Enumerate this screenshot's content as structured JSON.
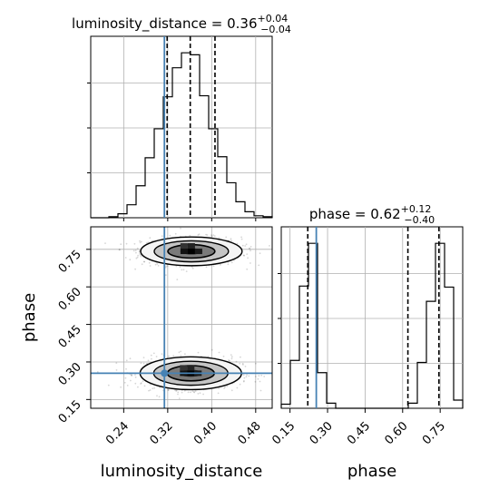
{
  "chart_data": {
    "type": "corner",
    "parameters": [
      "luminosity_distance",
      "phase"
    ],
    "truth": {
      "luminosity_distance": 0.314,
      "phase": 0.255
    },
    "truth_color": "#4682b4",
    "panels": [
      {
        "id": "hist-luminosity-distance",
        "type": "histogram",
        "parameter": "luminosity_distance",
        "title_prefix": "luminosity_distance = ",
        "value": "0.36",
        "err_plus": "+0.04",
        "err_minus": "−0.04",
        "xlim": [
          0.18,
          0.51
        ],
        "bin_edges": [
          0.18,
          0.1965,
          0.213,
          0.2295,
          0.246,
          0.2625,
          0.279,
          0.2955,
          0.312,
          0.3285,
          0.345,
          0.3615,
          0.378,
          0.3945,
          0.411,
          0.4275,
          0.444,
          0.4605,
          0.477,
          0.4935,
          0.51
        ],
        "counts": [
          0,
          0,
          1,
          4,
          13,
          32,
          60,
          89,
          121,
          150,
          165,
          163,
          122,
          89,
          61,
          35,
          16,
          6,
          2,
          1
        ],
        "quantiles": [
          0.319,
          0.361,
          0.406
        ]
      },
      {
        "id": "scatter-luminosity-distance-phase",
        "type": "2d-density",
        "x_parameter": "luminosity_distance",
        "y_parameter": "phase",
        "xlim": [
          0.18,
          0.51
        ],
        "ylim": [
          0.115,
          0.84
        ],
        "x_ticks": [
          "0.24",
          "0.32",
          "0.40",
          "0.48"
        ],
        "y_ticks": [
          "0.15",
          "0.30",
          "0.45",
          "0.60",
          "0.75"
        ],
        "xlabel": "luminosity_distance",
        "ylabel": "phase",
        "modes": [
          {
            "x": 0.363,
            "y": 0.742,
            "sx": 0.045,
            "sy": 0.028
          },
          {
            "x": 0.362,
            "y": 0.255,
            "sx": 0.045,
            "sy": 0.032
          }
        ]
      },
      {
        "id": "hist-phase",
        "type": "histogram",
        "parameter": "phase",
        "title_prefix": "phase = ",
        "value": "0.62",
        "err_plus": "+0.12",
        "err_minus": "−0.40",
        "xlim": [
          0.115,
          0.84
        ],
        "bin_edges": [
          0.115,
          0.15125,
          0.1875,
          0.22375,
          0.26,
          0.29625,
          0.3325,
          0.36875,
          0.405,
          0.44125,
          0.4775,
          0.51375,
          0.55,
          0.58625,
          0.6225,
          0.65875,
          0.695,
          0.73125,
          0.7675,
          0.80375,
          0.84
        ],
        "counts": [
          4,
          47,
          120,
          162,
          35,
          5,
          0,
          0,
          0,
          0,
          0,
          0,
          0,
          0,
          5,
          45,
          105,
          162,
          119,
          8
        ],
        "quantiles": [
          0.221,
          0.621,
          0.745
        ],
        "x_ticks": [
          "0.15",
          "0.30",
          "0.45",
          "0.60",
          "0.75"
        ],
        "xlabel": "phase"
      }
    ]
  }
}
